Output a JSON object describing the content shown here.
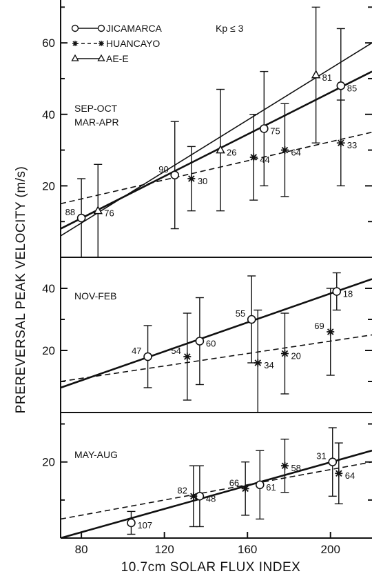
{
  "chart_data": {
    "type": "scatter",
    "xlabel": "10.7cm SOLAR FLUX INDEX",
    "ylabel": "PREREVERSAL PEAK VELOCITY (m/s)",
    "xlim": [
      70,
      220
    ],
    "x_ticks": [
      80,
      120,
      160,
      200
    ],
    "condition": "Kp ≤ 3",
    "legend": [
      {
        "name": "JICAMARCA",
        "marker": "circle",
        "line": "solid"
      },
      {
        "name": "HUANCAYO",
        "marker": "asterisk",
        "line": "dashed"
      },
      {
        "name": "AE-E",
        "marker": "triangle",
        "line": "solid"
      }
    ],
    "panels": [
      {
        "label_lines": [
          "SEP-OCT",
          "MAR-APR"
        ],
        "ylim": [
          0,
          72
        ],
        "y_ticks": [
          20,
          40,
          60
        ],
        "series": [
          {
            "name": "JICAMARCA",
            "points": [
              {
                "x": 80,
                "y": 11,
                "err": 11,
                "n": "88"
              },
              {
                "x": 125,
                "y": 23,
                "err": 15,
                "n": "90"
              },
              {
                "x": 168,
                "y": 36,
                "err": 16,
                "n": "75"
              },
              {
                "x": 205,
                "y": 48,
                "err": 16,
                "n": "85"
              }
            ],
            "fit": [
              [
                70,
                8
              ],
              [
                220,
                52
              ]
            ]
          },
          {
            "name": "HUANCAYO",
            "points": [
              {
                "x": 133,
                "y": 22,
                "err": 9,
                "n": "30"
              },
              {
                "x": 163,
                "y": 28,
                "err": 12,
                "n": "44"
              },
              {
                "x": 178,
                "y": 30,
                "err": 13,
                "n": "64"
              },
              {
                "x": 205,
                "y": 32,
                "err": 12,
                "n": "33"
              }
            ],
            "fit": [
              [
                70,
                15
              ],
              [
                220,
                35
              ]
            ]
          },
          {
            "name": "AE-E",
            "points": [
              {
                "x": 88,
                "y": 13,
                "err": 13,
                "n": "76"
              },
              {
                "x": 147,
                "y": 30,
                "err": 17,
                "n": "26"
              },
              {
                "x": 193,
                "y": 51,
                "err": 19,
                "n": "81"
              }
            ],
            "fit": [
              [
                70,
                6
              ],
              [
                220,
                60
              ]
            ]
          }
        ]
      },
      {
        "label_lines": [
          "NOV-FEB"
        ],
        "ylim": [
          0,
          50
        ],
        "y_ticks": [
          20,
          40
        ],
        "series": [
          {
            "name": "JICAMARCA",
            "points": [
              {
                "x": 112,
                "y": 18,
                "err": 10,
                "n": "47"
              },
              {
                "x": 137,
                "y": 23,
                "err": 14,
                "n": "60"
              },
              {
                "x": 162,
                "y": 30,
                "err": 14,
                "n": "55"
              },
              {
                "x": 203,
                "y": 39,
                "err": 6,
                "n": "18"
              }
            ],
            "fit": [
              [
                70,
                8
              ],
              [
                220,
                43
              ]
            ]
          },
          {
            "name": "HUANCAYO",
            "points": [
              {
                "x": 131,
                "y": 18,
                "err": 14,
                "n": "54"
              },
              {
                "x": 165,
                "y": 16,
                "err": 17,
                "n": "34"
              },
              {
                "x": 178,
                "y": 19,
                "err": 13,
                "n": "20"
              },
              {
                "x": 200,
                "y": 26,
                "err": 14,
                "n": "69"
              }
            ],
            "fit": [
              [
                70,
                10
              ],
              [
                220,
                25
              ]
            ]
          }
        ]
      },
      {
        "label_lines": [
          "MAY-AUG"
        ],
        "ylim": [
          0,
          33
        ],
        "y_ticks": [
          20
        ],
        "series": [
          {
            "name": "JICAMARCA",
            "points": [
              {
                "x": 104,
                "y": 4,
                "err": 3,
                "n": "107"
              },
              {
                "x": 137,
                "y": 11,
                "err": 8,
                "n": "48"
              },
              {
                "x": 166,
                "y": 14,
                "err": 9,
                "n": "61"
              },
              {
                "x": 201,
                "y": 20,
                "err": 9,
                "n": "31"
              }
            ],
            "fit": [
              [
                70,
                0
              ],
              [
                220,
                23
              ]
            ]
          },
          {
            "name": "HUANCAYO",
            "points": [
              {
                "x": 134,
                "y": 11,
                "err": 8,
                "n": "82"
              },
              {
                "x": 159,
                "y": 13,
                "err": 7,
                "n": "66"
              },
              {
                "x": 178,
                "y": 19,
                "err": 7,
                "n": "58"
              },
              {
                "x": 204,
                "y": 17,
                "err": 8,
                "n": "64"
              }
            ],
            "fit": [
              [
                70,
                5
              ],
              [
                220,
                20
              ]
            ]
          }
        ]
      }
    ]
  }
}
